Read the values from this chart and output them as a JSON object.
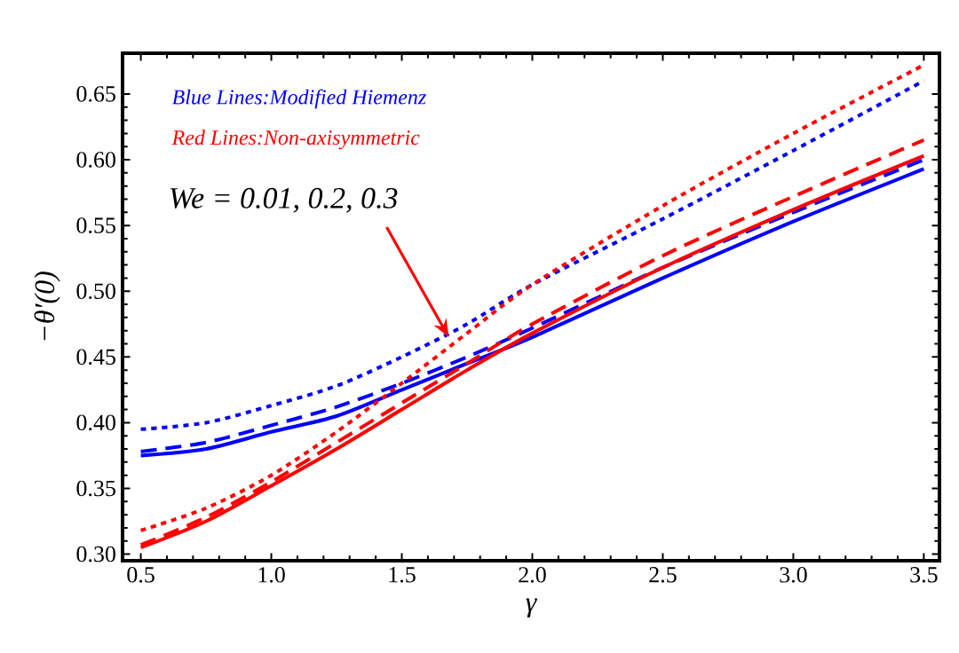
{
  "chart_data": {
    "type": "line",
    "xlabel": "γ",
    "ylabel": "−θ′(0)",
    "annotations": [
      "Blue Lines:Modified Hiemenz",
      "Red Lines:Non-axisymmetric",
      {
        "text": "We = 0.01, 0.2, 0.3",
        "x": 1.68,
        "y": 0.465
      }
    ],
    "x": [
      0.5,
      0.75,
      1.0,
      1.25,
      1.5,
      1.75,
      2.0,
      2.5,
      3.0,
      3.5
    ],
    "series": [
      {
        "color": "#0000ff",
        "line_style": "solid",
        "values": [
          0.375,
          0.38,
          0.393,
          0.405,
          0.425,
          0.445,
          0.465,
          0.51,
          0.553,
          0.593
        ]
      },
      {
        "color": "#0000ff",
        "line_style": "dashed",
        "values": [
          0.378,
          0.385,
          0.398,
          0.412,
          0.43,
          0.45,
          0.472,
          0.518,
          0.56,
          0.6
        ]
      },
      {
        "color": "#0000ff",
        "line_style": "dotted",
        "values": [
          0.395,
          0.4,
          0.413,
          0.428,
          0.45,
          0.475,
          0.505,
          0.555,
          0.607,
          0.66
        ]
      },
      {
        "color": "#ff0000",
        "line_style": "solid",
        "values": [
          0.305,
          0.325,
          0.352,
          0.38,
          0.41,
          0.44,
          0.468,
          0.518,
          0.562,
          0.603
        ]
      },
      {
        "color": "#ff0000",
        "line_style": "dashed",
        "values": [
          0.307,
          0.328,
          0.355,
          0.385,
          0.415,
          0.445,
          0.475,
          0.527,
          0.572,
          0.615
        ]
      },
      {
        "color": "#ff0000",
        "line_style": "dotted",
        "values": [
          0.318,
          0.335,
          0.36,
          0.393,
          0.43,
          0.468,
          0.505,
          0.565,
          0.62,
          0.672
        ]
      }
    ],
    "xlim": [
      0.43,
      3.56
    ],
    "ylim": [
      0.295,
      0.681
    ],
    "xticks": [
      0.5,
      {
        "value": 1,
        "label": "1.0"
      },
      1.5,
      {
        "value": 2,
        "label": "2.0"
      },
      2.5,
      {
        "value": 3,
        "label": "3.0"
      },
      3.5
    ],
    "yticks": [
      {
        "value": 0.3,
        "label": "0.30"
      },
      {
        "value": 0.35,
        "label": "0.35"
      },
      {
        "value": 0.4,
        "label": "0.40"
      },
      {
        "value": 0.45,
        "label": "0.45"
      },
      {
        "value": 0.5,
        "label": "0.50"
      },
      {
        "value": 0.55,
        "label": "0.55"
      },
      {
        "value": 0.6,
        "label": "0.60"
      },
      {
        "value": 0.65,
        "label": "0.65"
      }
    ]
  }
}
